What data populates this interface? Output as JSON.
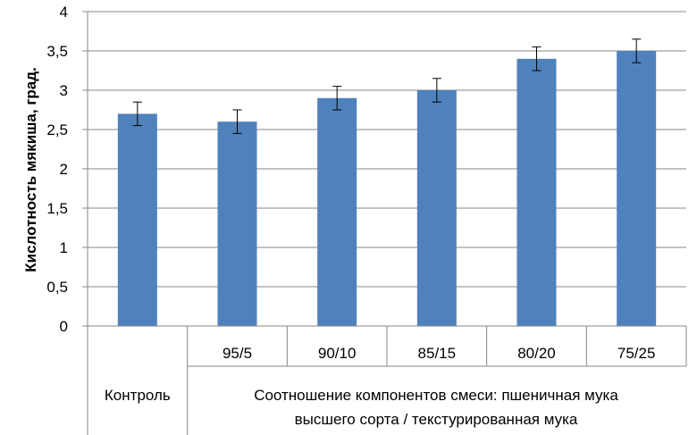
{
  "chart_data": {
    "type": "bar",
    "categories": [
      "Контроль",
      "95/5",
      "90/10",
      "85/15",
      "80/20",
      "75/25"
    ],
    "values": [
      2.7,
      2.6,
      2.9,
      3.0,
      3.4,
      3.5
    ],
    "errors": [
      0.15,
      0.15,
      0.15,
      0.15,
      0.15,
      0.15
    ],
    "ylabel": "Кислотность мякиша, град.",
    "group_label_line1": "Соотношение компонентов смеси: пшеничная мука",
    "group_label_line2": "высшего сорта / текстурированная мука",
    "yticks": [
      "0",
      "0,5",
      "1",
      "1,5",
      "2",
      "2,5",
      "3",
      "3,5",
      "4"
    ],
    "ylim": [
      0,
      4
    ],
    "grid": true,
    "bar_color": "#4F81BD"
  }
}
